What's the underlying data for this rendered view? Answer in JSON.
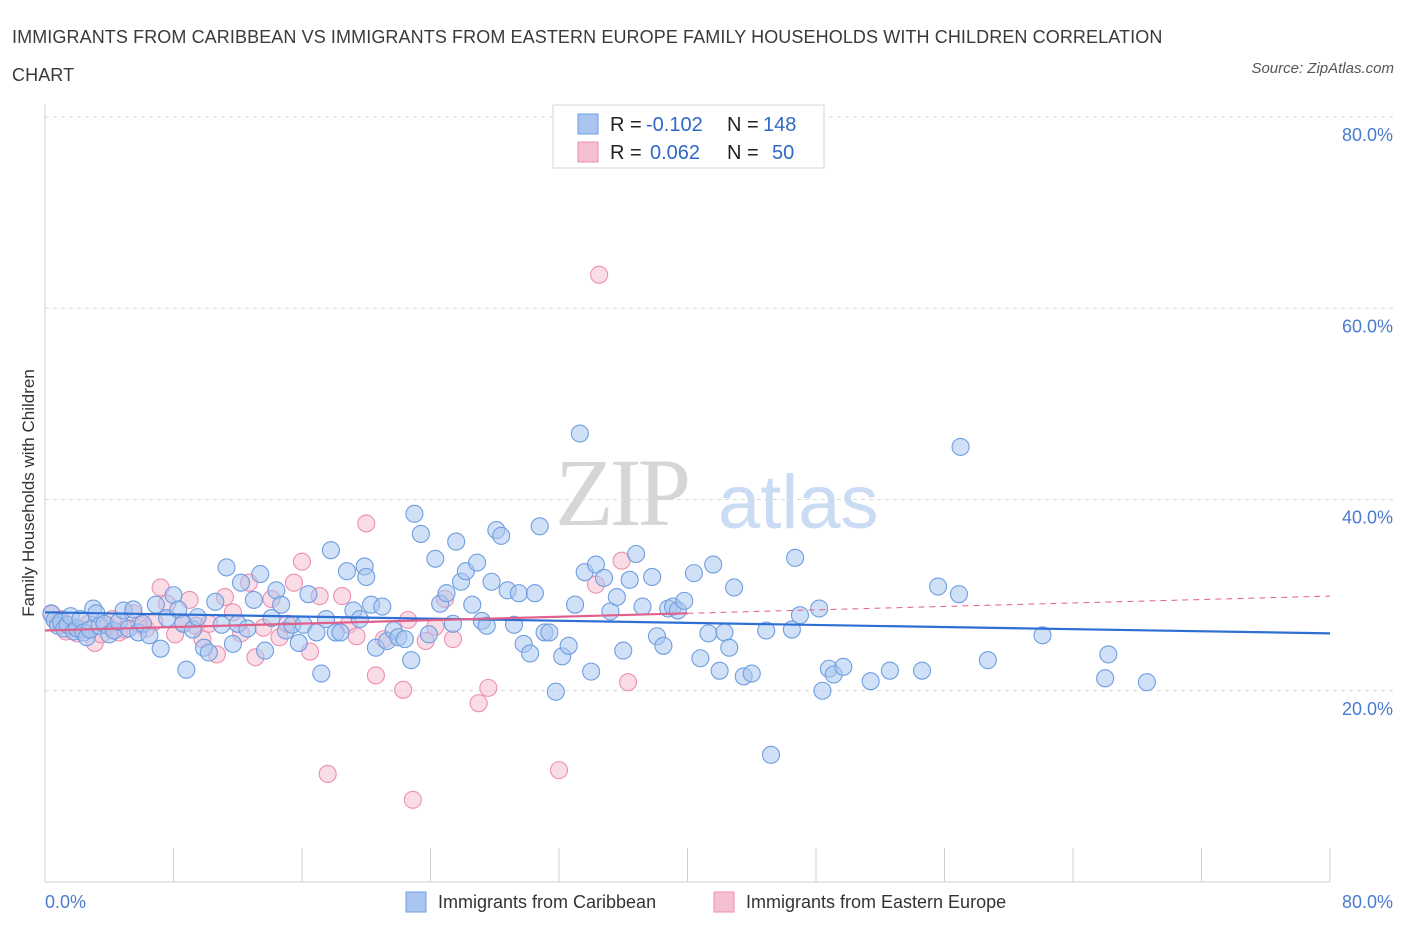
{
  "title": "IMMIGRANTS FROM CARIBBEAN VS IMMIGRANTS FROM EASTERN EUROPE FAMILY HOUSEHOLDS WITH CHILDREN CORRELATION CHART",
  "source": "Source: ZipAtlas.com",
  "watermark": {
    "zip": "ZIP",
    "atlas": "atlas"
  },
  "colors": {
    "caribbean_fill": "#aac6f0",
    "caribbean_stroke": "#6f9ee0",
    "caribbean_line": "#2e6fd4",
    "eastern_fill": "#f6c0d2",
    "eastern_stroke": "#ec8fb0",
    "eastern_line": "#e0608c",
    "axis_text": "#4a7bd1",
    "grid": "#d9d9d9"
  },
  "legend": {
    "rows": [
      {
        "r_label": "R = ",
        "r_value": "-0.102",
        "n_label": "N = ",
        "n_value": "148"
      },
      {
        "r_label": "R = ",
        "r_value": "0.062",
        "n_label": "N = ",
        "n_value": "50"
      }
    ]
  },
  "chart_data": {
    "type": "scatter",
    "title": "IMMIGRANTS FROM CARIBBEAN VS IMMIGRANTS FROM EASTERN EUROPE FAMILY HOUSEHOLDS WITH CHILDREN CORRELATION CHART",
    "xlabel": "",
    "ylabel": "Family Households with Children",
    "xlim": [
      0,
      80
    ],
    "ylim": [
      0,
      80
    ],
    "x_tick_labels": [
      "0.0%",
      "80.0%"
    ],
    "y_tick_labels": [
      "20.0%",
      "40.0%",
      "60.0%",
      "80.0%"
    ],
    "y_ticks": [
      20,
      40,
      60,
      80
    ],
    "grid": true,
    "legend_position": "top-center",
    "series": [
      {
        "name": "Immigrants from Caribbean",
        "R": -0.102,
        "N": 148,
        "trend": {
          "x": [
            0,
            80
          ],
          "y": [
            28.2,
            26.0
          ]
        },
        "points": [
          [
            0.4,
            28.1
          ],
          [
            0.6,
            27.4
          ],
          [
            0.8,
            26.8
          ],
          [
            1.0,
            27.2
          ],
          [
            1.2,
            26.5
          ],
          [
            1.4,
            26.9
          ],
          [
            1.6,
            27.8
          ],
          [
            1.8,
            26.2
          ],
          [
            2.0,
            26.5
          ],
          [
            2.2,
            27.5
          ],
          [
            2.4,
            26.1
          ],
          [
            2.6,
            25.6
          ],
          [
            2.8,
            26.4
          ],
          [
            3.0,
            28.6
          ],
          [
            3.2,
            28.1
          ],
          [
            3.4,
            26.8
          ],
          [
            3.7,
            27.0
          ],
          [
            4.0,
            25.9
          ],
          [
            4.3,
            26.3
          ],
          [
            4.6,
            27.2
          ],
          [
            4.9,
            28.4
          ],
          [
            5.2,
            26.5
          ],
          [
            5.5,
            28.5
          ],
          [
            5.8,
            26.1
          ],
          [
            6.1,
            27.0
          ],
          [
            6.5,
            25.8
          ],
          [
            6.9,
            29.0
          ],
          [
            7.2,
            24.4
          ],
          [
            7.6,
            27.6
          ],
          [
            8.0,
            30.0
          ],
          [
            8.3,
            28.5
          ],
          [
            8.6,
            27.0
          ],
          [
            8.8,
            22.2
          ],
          [
            9.2,
            26.4
          ],
          [
            9.5,
            27.7
          ],
          [
            9.9,
            24.5
          ],
          [
            10.2,
            24.0
          ],
          [
            10.6,
            29.3
          ],
          [
            11.0,
            26.9
          ],
          [
            11.3,
            32.9
          ],
          [
            11.7,
            24.9
          ],
          [
            12.0,
            27.0
          ],
          [
            12.2,
            31.3
          ],
          [
            12.6,
            26.5
          ],
          [
            13.0,
            29.5
          ],
          [
            13.4,
            32.2
          ],
          [
            13.7,
            24.2
          ],
          [
            14.1,
            27.6
          ],
          [
            14.4,
            30.5
          ],
          [
            14.7,
            29.0
          ],
          [
            15.0,
            26.3
          ],
          [
            15.4,
            26.9
          ],
          [
            15.8,
            25.0
          ],
          [
            16.1,
            26.9
          ],
          [
            16.4,
            30.1
          ],
          [
            16.9,
            26.1
          ],
          [
            17.2,
            21.8
          ],
          [
            17.5,
            27.5
          ],
          [
            17.8,
            34.7
          ],
          [
            18.1,
            26.1
          ],
          [
            18.4,
            26.1
          ],
          [
            18.8,
            32.5
          ],
          [
            19.2,
            28.4
          ],
          [
            19.6,
            27.5
          ],
          [
            19.9,
            33.0
          ],
          [
            20.0,
            31.9
          ],
          [
            20.3,
            29.0
          ],
          [
            20.6,
            24.5
          ],
          [
            21.0,
            28.8
          ],
          [
            21.3,
            25.2
          ],
          [
            21.7,
            26.3
          ],
          [
            22.0,
            25.6
          ],
          [
            22.4,
            25.4
          ],
          [
            22.8,
            23.2
          ],
          [
            23.0,
            38.5
          ],
          [
            23.4,
            36.4
          ],
          [
            23.9,
            25.9
          ],
          [
            24.3,
            33.8
          ],
          [
            24.6,
            29.1
          ],
          [
            25.0,
            30.2
          ],
          [
            25.4,
            27.0
          ],
          [
            25.6,
            35.6
          ],
          [
            25.9,
            31.4
          ],
          [
            26.2,
            32.5
          ],
          [
            26.6,
            29.0
          ],
          [
            26.9,
            33.4
          ],
          [
            27.2,
            27.3
          ],
          [
            27.5,
            26.8
          ],
          [
            27.8,
            31.4
          ],
          [
            28.1,
            36.8
          ],
          [
            28.4,
            36.2
          ],
          [
            28.8,
            30.5
          ],
          [
            29.2,
            26.9
          ],
          [
            29.5,
            30.2
          ],
          [
            29.8,
            24.9
          ],
          [
            30.2,
            23.9
          ],
          [
            30.5,
            30.2
          ],
          [
            30.8,
            37.2
          ],
          [
            31.1,
            26.1
          ],
          [
            31.4,
            26.1
          ],
          [
            31.8,
            19.9
          ],
          [
            32.2,
            23.6
          ],
          [
            32.6,
            24.7
          ],
          [
            33.0,
            29.0
          ],
          [
            33.3,
            46.9
          ],
          [
            33.6,
            32.4
          ],
          [
            34.0,
            22.0
          ],
          [
            34.3,
            33.2
          ],
          [
            34.8,
            31.8
          ],
          [
            35.2,
            28.3
          ],
          [
            35.6,
            29.8
          ],
          [
            36.0,
            24.2
          ],
          [
            36.4,
            31.6
          ],
          [
            36.8,
            34.3
          ],
          [
            37.2,
            28.8
          ],
          [
            37.8,
            31.9
          ],
          [
            38.1,
            25.7
          ],
          [
            38.5,
            24.7
          ],
          [
            38.8,
            28.6
          ],
          [
            39.1,
            28.8
          ],
          [
            39.4,
            28.4
          ],
          [
            39.8,
            29.4
          ],
          [
            40.4,
            32.3
          ],
          [
            40.8,
            23.4
          ],
          [
            41.3,
            26.0
          ],
          [
            41.6,
            33.2
          ],
          [
            42.0,
            22.1
          ],
          [
            42.3,
            26.1
          ],
          [
            42.6,
            24.5
          ],
          [
            42.9,
            30.8
          ],
          [
            43.5,
            21.5
          ],
          [
            44.0,
            21.8
          ],
          [
            44.9,
            26.3
          ],
          [
            45.2,
            13.3
          ],
          [
            46.5,
            26.4
          ],
          [
            46.7,
            33.9
          ],
          [
            47.0,
            27.9
          ],
          [
            48.2,
            28.6
          ],
          [
            48.4,
            20.0
          ],
          [
            48.8,
            22.3
          ],
          [
            49.1,
            21.7
          ],
          [
            49.7,
            22.5
          ],
          [
            51.4,
            21.0
          ],
          [
            52.6,
            22.1
          ],
          [
            54.6,
            22.1
          ],
          [
            55.6,
            30.9
          ],
          [
            56.9,
            30.1
          ],
          [
            57.0,
            45.5
          ],
          [
            58.7,
            23.2
          ],
          [
            62.1,
            25.8
          ],
          [
            66.0,
            21.3
          ],
          [
            66.2,
            23.8
          ],
          [
            68.6,
            20.9
          ]
        ]
      },
      {
        "name": "Immigrants from Eastern Europe",
        "R": 0.062,
        "N": 50,
        "trend": {
          "x": [
            0,
            40
          ],
          "y": [
            26.3,
            28.1
          ]
        },
        "points": [
          [
            0.4,
            28.0
          ],
          [
            0.8,
            27.2
          ],
          [
            1.0,
            27.5
          ],
          [
            1.3,
            26.2
          ],
          [
            1.6,
            26.8
          ],
          [
            2.0,
            26.0
          ],
          [
            2.3,
            26.4
          ],
          [
            2.7,
            27.0
          ],
          [
            3.1,
            25.0
          ],
          [
            3.5,
            25.9
          ],
          [
            3.9,
            26.8
          ],
          [
            4.2,
            27.5
          ],
          [
            4.6,
            26.1
          ],
          [
            5.0,
            26.4
          ],
          [
            5.5,
            28.1
          ],
          [
            5.9,
            26.9
          ],
          [
            6.3,
            26.5
          ],
          [
            6.8,
            27.2
          ],
          [
            7.2,
            30.8
          ],
          [
            7.6,
            29.1
          ],
          [
            8.1,
            25.9
          ],
          [
            8.6,
            27.1
          ],
          [
            9.0,
            29.5
          ],
          [
            9.4,
            26.8
          ],
          [
            9.8,
            25.4
          ],
          [
            10.2,
            27.0
          ],
          [
            10.7,
            23.8
          ],
          [
            11.2,
            29.8
          ],
          [
            11.7,
            28.2
          ],
          [
            12.2,
            26.0
          ],
          [
            12.7,
            31.3
          ],
          [
            13.1,
            23.5
          ],
          [
            13.6,
            26.6
          ],
          [
            14.1,
            29.6
          ],
          [
            14.6,
            25.6
          ],
          [
            15.1,
            27.0
          ],
          [
            15.5,
            31.3
          ],
          [
            16.0,
            33.5
          ],
          [
            16.5,
            24.1
          ],
          [
            17.1,
            29.9
          ],
          [
            17.6,
            11.3
          ],
          [
            18.5,
            29.9
          ],
          [
            18.9,
            26.9
          ],
          [
            19.4,
            25.7
          ],
          [
            20.0,
            37.5
          ],
          [
            20.6,
            21.6
          ],
          [
            21.1,
            25.4
          ],
          [
            22.3,
            20.1
          ],
          [
            22.6,
            27.4
          ],
          [
            22.9,
            8.6
          ]
        ]
      }
    ],
    "extra_points_eastern": [
      [
        23.7,
        25.2
      ],
      [
        24.3,
        26.7
      ],
      [
        24.9,
        29.6
      ],
      [
        25.4,
        25.4
      ],
      [
        27.0,
        18.7
      ],
      [
        27.6,
        20.3
      ],
      [
        32.0,
        11.7
      ],
      [
        34.3,
        31.1
      ],
      [
        34.5,
        63.5
      ],
      [
        35.9,
        33.6
      ],
      [
        36.3,
        20.9
      ]
    ]
  },
  "bottom_legend": {
    "caribbean_label": "Immigrants from Caribbean",
    "eastern_label": "Immigrants from Eastern Europe"
  }
}
